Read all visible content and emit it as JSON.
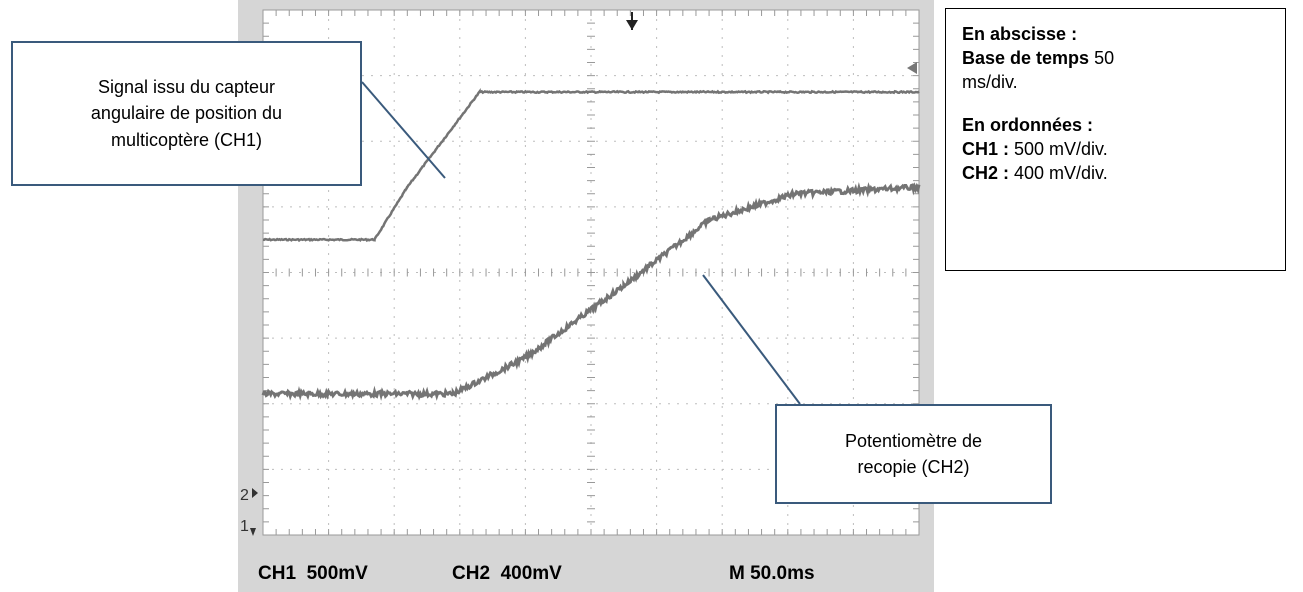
{
  "colors": {
    "trace": "#747474",
    "callout_border": "#3a5a7c",
    "grid": "#bdbdbd",
    "frame": "#d6d6d6"
  },
  "status_bar": {
    "ch1": "CH1  500mV",
    "ch2": "CH2  400mV",
    "timebase": "M 50.0ms"
  },
  "callouts": {
    "ch1": [
      "Signal issu du capteur",
      "angulaire de position du",
      "multicoptère (CH1)"
    ],
    "ch2": [
      "Potentiomètre de",
      "recopie (CH2)"
    ]
  },
  "info": {
    "abscisse_title": "En abscisse :",
    "base_label": "Base de temps",
    "base_value": " 50",
    "base_unit": "ms/div.",
    "ordonnees_title": "En ordonnées :",
    "ch1_label": "CH1 :",
    "ch1_value": " 500 mV/div.",
    "ch2_label": "CH2 :",
    "ch2_value": " 400 mV/div."
  },
  "markers": {
    "ch2": "2",
    "ch1": "1"
  },
  "chart_data": {
    "type": "line",
    "grid": true,
    "xlim": [
      0,
      10
    ],
    "ylim": [
      0,
      8
    ],
    "x_units": "div",
    "y_units": "div",
    "series": [
      {
        "x": [
          0,
          1.7,
          2.2,
          3.3,
          10
        ],
        "y": [
          4.5,
          4.5,
          5.3,
          6.75,
          6.75
        ]
      },
      {
        "x": [
          0,
          2.9,
          4.0,
          5.5,
          6.8,
          8.1,
          10
        ],
        "y": [
          2.15,
          2.15,
          2.7,
          3.8,
          4.8,
          5.2,
          5.3
        ]
      }
    ]
  }
}
